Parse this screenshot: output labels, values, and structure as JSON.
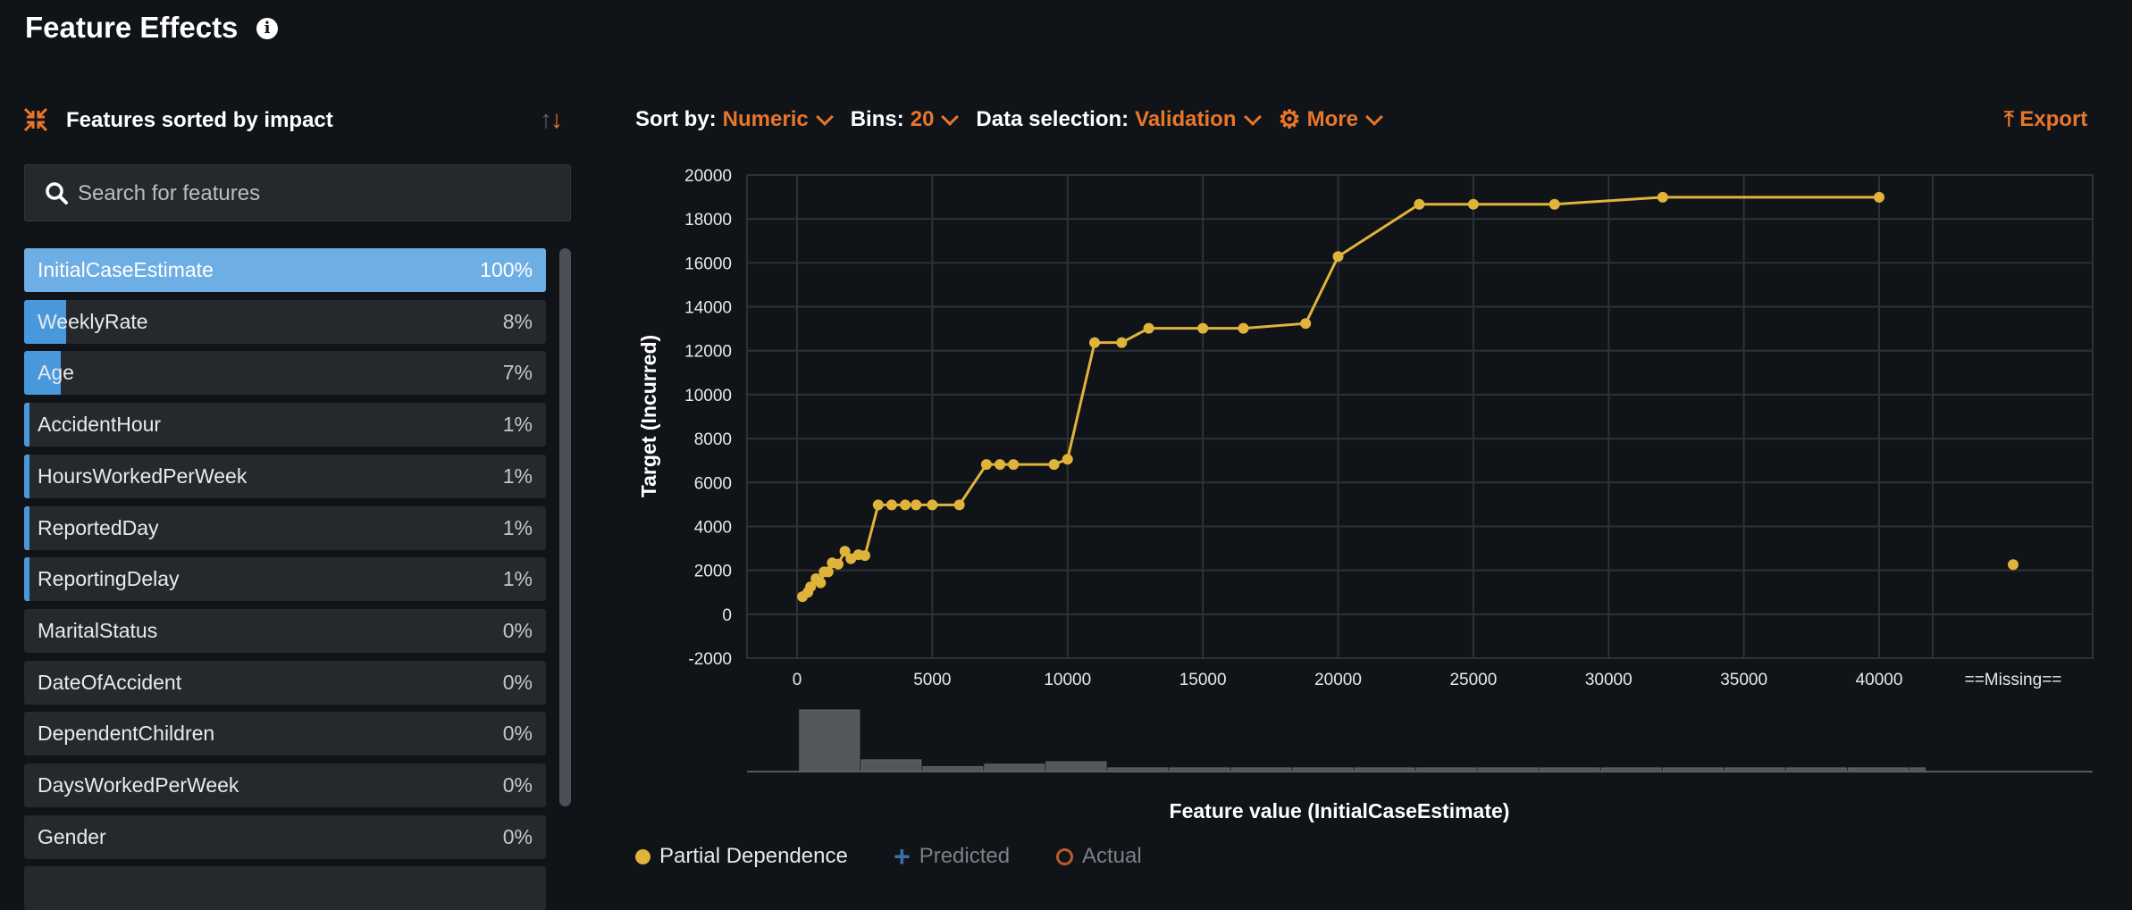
{
  "header": {
    "title": "Feature Effects",
    "info_icon": "info-circle-icon"
  },
  "features_panel": {
    "title": "Features sorted by impact",
    "search_placeholder": "Search for features",
    "items": [
      {
        "name": "InitialCaseEstimate",
        "impact_label": "100%",
        "impact": 100,
        "selected": true
      },
      {
        "name": "WeeklyRate",
        "impact_label": "8%",
        "impact": 8
      },
      {
        "name": "Age",
        "impact_label": "7%",
        "impact": 7
      },
      {
        "name": "AccidentHour",
        "impact_label": "1%",
        "impact": 1
      },
      {
        "name": "HoursWorkedPerWeek",
        "impact_label": "1%",
        "impact": 1
      },
      {
        "name": "ReportedDay",
        "impact_label": "1%",
        "impact": 1
      },
      {
        "name": "ReportingDelay",
        "impact_label": "1%",
        "impact": 1
      },
      {
        "name": "MaritalStatus",
        "impact_label": "0%",
        "impact": 0
      },
      {
        "name": "DateOfAccident",
        "impact_label": "0%",
        "impact": 0
      },
      {
        "name": "DependentChildren",
        "impact_label": "0%",
        "impact": 0
      },
      {
        "name": "DaysWorkedPerWeek",
        "impact_label": "0%",
        "impact": 0
      },
      {
        "name": "Gender",
        "impact_label": "0%",
        "impact": 0
      },
      {
        "name": "",
        "impact_label": "",
        "impact": 0
      }
    ]
  },
  "toolbar": {
    "sort_label": "Sort by:",
    "sort_value": "Numeric",
    "bins_label": "Bins:",
    "bins_value": "20",
    "data_label": "Data selection:",
    "data_value": "Validation",
    "more_label": "More",
    "export_label": "Export"
  },
  "colors": {
    "accent": "#e8762b",
    "pd": "#e0b43a",
    "bar": "#4a98dc",
    "bar_selected": "#6daee4",
    "predicted": "#3d6fa8",
    "actual": "#b85d2a"
  },
  "chart_data": {
    "type": "line",
    "xlabel": "Feature value (InitialCaseEstimate)",
    "ylabel": "Target (Incurred)",
    "xlim": [
      0,
      40000
    ],
    "ylim": [
      -2000,
      20000
    ],
    "x_ticks": [
      0,
      5000,
      10000,
      15000,
      20000,
      25000,
      30000,
      35000,
      40000
    ],
    "y_ticks": [
      -2000,
      0,
      2000,
      4000,
      6000,
      8000,
      10000,
      12000,
      14000,
      16000,
      18000,
      20000
    ],
    "missing_label": "==Missing==",
    "grid": true,
    "series": [
      {
        "name": "Partial Dependence",
        "x": [
          200,
          400,
          500,
          700,
          870,
          1000,
          1150,
          1300,
          1520,
          1770,
          1990,
          2270,
          2510,
          3000,
          3500,
          4000,
          4400,
          5000,
          6000,
          7000,
          7500,
          8000,
          9500,
          10000,
          11000,
          12000,
          13000,
          15000,
          16500,
          18800,
          20000,
          23000,
          25000,
          28000,
          32000,
          40000
        ],
        "y": [
          800,
          1000,
          1250,
          1620,
          1430,
          1930,
          1930,
          2340,
          2280,
          2870,
          2530,
          2710,
          2670,
          4980,
          4980,
          4980,
          4980,
          4980,
          4980,
          6820,
          6820,
          6820,
          6820,
          7060,
          12370,
          12370,
          13020,
          13020,
          13020,
          13240,
          16290,
          18670,
          18670,
          18670,
          18990,
          18990
        ],
        "missing_value": 2260
      }
    ],
    "histogram": {
      "bin_edges": [
        60,
        2340,
        4620,
        6900,
        9180,
        11460,
        13740,
        16020,
        18300,
        20580,
        22860,
        25140,
        27420,
        29700,
        31980,
        34260,
        36540,
        38820,
        41100,
        41730
      ],
      "relative_counts": [
        100,
        19,
        8,
        12,
        16,
        6,
        6,
        6,
        6,
        6,
        6,
        6,
        6,
        6,
        6,
        6,
        6,
        6,
        6
      ]
    },
    "legend": [
      {
        "label": "Partial Dependence",
        "marker": "filled-circle"
      },
      {
        "label": "Predicted",
        "marker": "plus"
      },
      {
        "label": "Actual",
        "marker": "open-circle"
      }
    ],
    "legend_position": "bottom-left"
  }
}
